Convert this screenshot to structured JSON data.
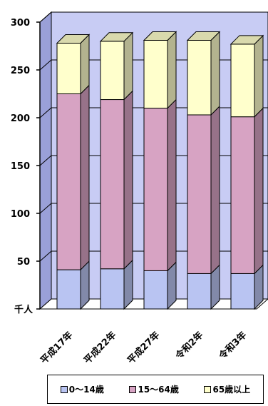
{
  "chart_data": {
    "type": "bar",
    "stacked": true,
    "three_d": true,
    "categories": [
      "平成17年",
      "平成22年",
      "平成27年",
      "令和2年",
      "令和3年"
    ],
    "series": [
      {
        "name": "0～14歳",
        "values": [
          41,
          42,
          40,
          37,
          37
        ],
        "color": "#b9c4f2"
      },
      {
        "name": "15～64歳",
        "values": [
          184,
          177,
          170,
          166,
          164
        ],
        "color": "#d7a3c3"
      },
      {
        "name": "65歳以上",
        "values": [
          53,
          61,
          71,
          78,
          76
        ],
        "color": "#ffffcc"
      }
    ],
    "ylim": [
      0,
      300
    ],
    "yticks": [
      0,
      50,
      100,
      150,
      200,
      250,
      300
    ],
    "y_unit_label": "千人",
    "grid": true,
    "legend_position": "bottom"
  }
}
